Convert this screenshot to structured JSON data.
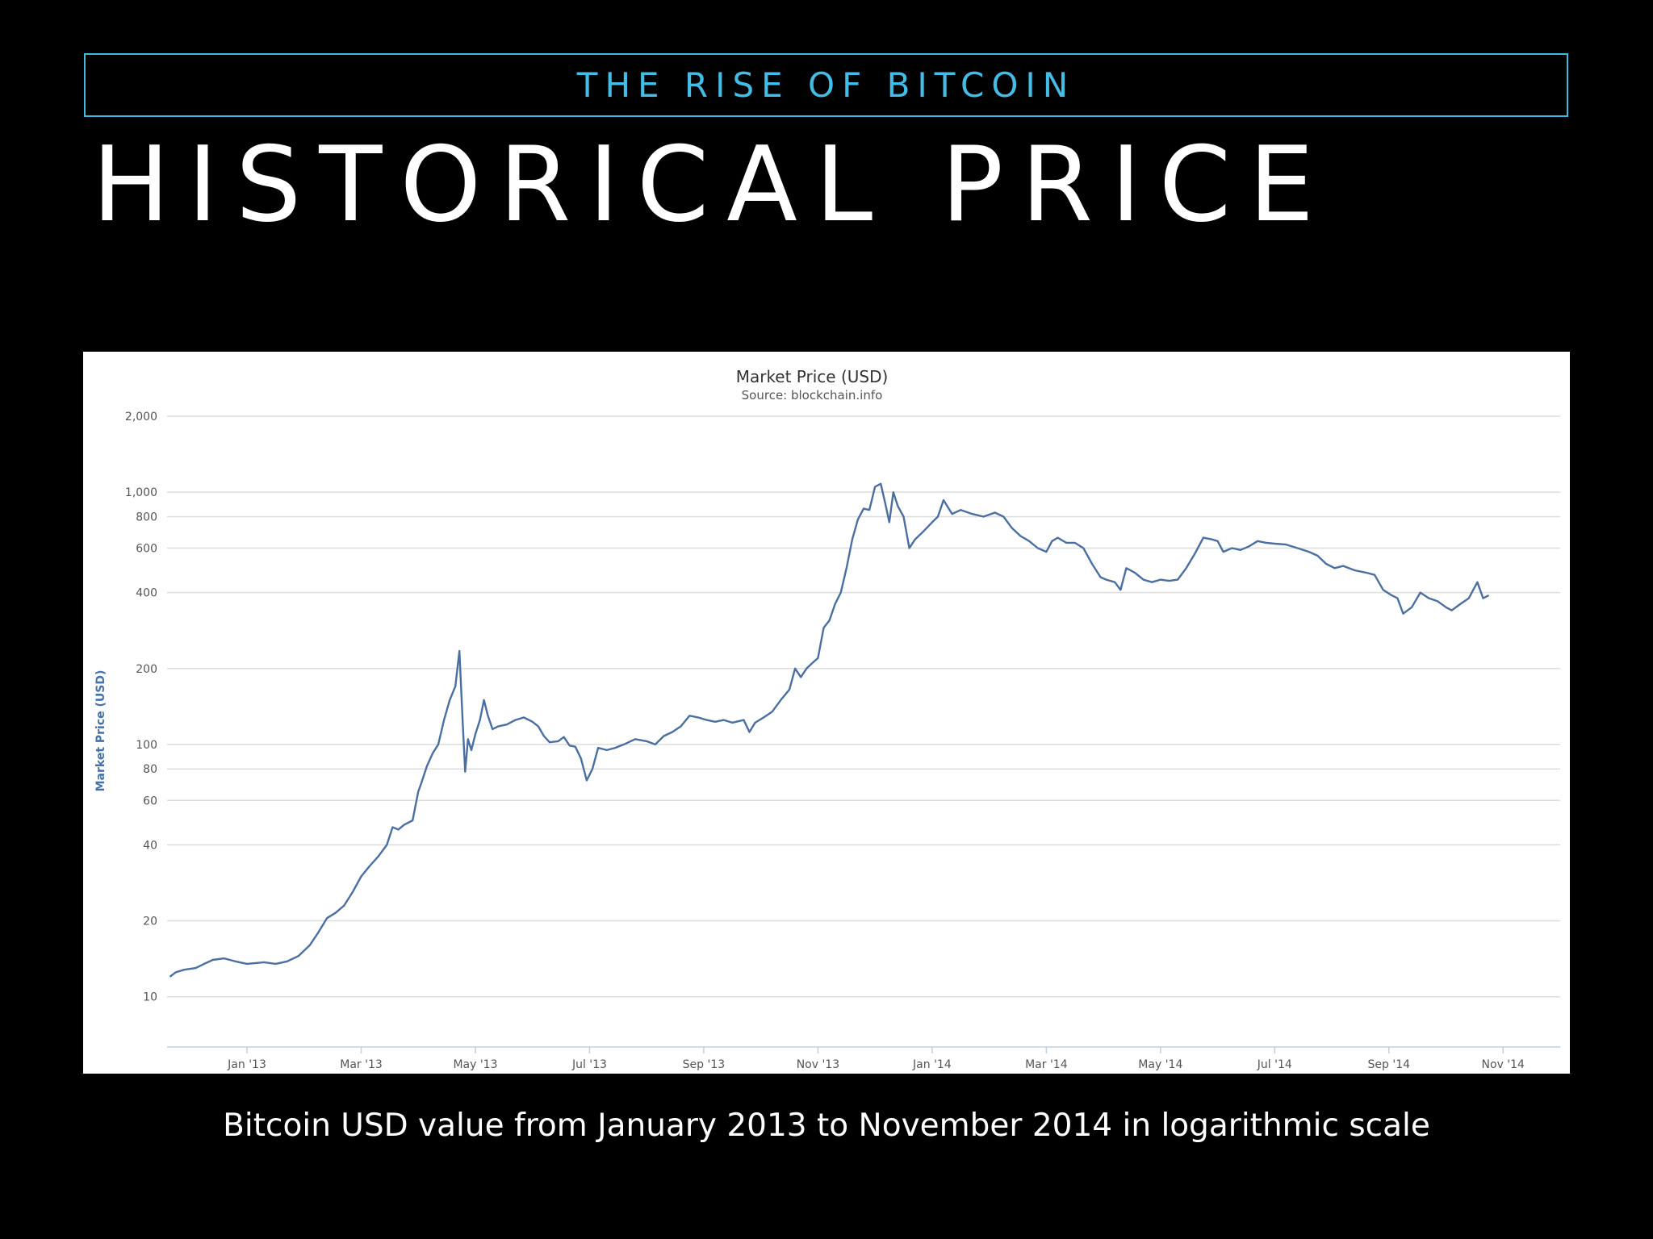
{
  "slide": {
    "kicker": "THE RISE OF BITCOIN",
    "title": "HISTORICAL PRICE",
    "caption": "Bitcoin USD value from January 2013 to November 2014 in logarithmic scale"
  },
  "colors": {
    "background": "#000000",
    "accent": "#44bde6",
    "line": "#4a6fa0",
    "grid": "#dddddd"
  },
  "chart_data": {
    "type": "line",
    "title": "Market Price (USD)",
    "subtitle": "Source: blockchain.info",
    "xlabel": "",
    "ylabel": "Market Price (USD)",
    "yscale": "log",
    "ylim": [
      8,
      2000
    ],
    "grid": true,
    "y_ticks": [
      {
        "value": 10,
        "label": "10"
      },
      {
        "value": 20,
        "label": "20"
      },
      {
        "value": 40,
        "label": "40"
      },
      {
        "value": 60,
        "label": "60"
      },
      {
        "value": 80,
        "label": "80"
      },
      {
        "value": 100,
        "label": "100"
      },
      {
        "value": 200,
        "label": "200"
      },
      {
        "value": 400,
        "label": "400"
      },
      {
        "value": 600,
        "label": "600"
      },
      {
        "value": 800,
        "label": "800"
      },
      {
        "value": 1000,
        "label": "1,000"
      },
      {
        "value": 2000,
        "label": "2,000"
      }
    ],
    "x_ticks": [
      {
        "t": 0.0,
        "label": "Jan '13"
      },
      {
        "t": 2.0,
        "label": "Mar '13"
      },
      {
        "t": 4.0,
        "label": "May '13"
      },
      {
        "t": 6.0,
        "label": "Jul '13"
      },
      {
        "t": 8.0,
        "label": "Sep '13"
      },
      {
        "t": 10.0,
        "label": "Nov '13"
      },
      {
        "t": 12.0,
        "label": "Jan '14"
      },
      {
        "t": 14.0,
        "label": "Mar '14"
      },
      {
        "t": 16.0,
        "label": "May '14"
      },
      {
        "t": 18.0,
        "label": "Jul '14"
      },
      {
        "t": 20.0,
        "label": "Sep '14"
      },
      {
        "t": 22.0,
        "label": "Nov '14"
      }
    ],
    "xlim": [
      -1.4,
      23.0
    ],
    "series": [
      {
        "name": "Market Price (USD)",
        "points": [
          [
            -1.35,
            12
          ],
          [
            -1.25,
            12.5
          ],
          [
            -1.1,
            12.8
          ],
          [
            -0.9,
            13
          ],
          [
            -0.75,
            13.5
          ],
          [
            -0.6,
            14
          ],
          [
            -0.4,
            14.2
          ],
          [
            -0.2,
            13.8
          ],
          [
            0.0,
            13.5
          ],
          [
            0.3,
            13.7
          ],
          [
            0.5,
            13.5
          ],
          [
            0.7,
            13.8
          ],
          [
            0.9,
            14.5
          ],
          [
            1.1,
            16
          ],
          [
            1.25,
            18
          ],
          [
            1.4,
            20.5
          ],
          [
            1.55,
            21.5
          ],
          [
            1.7,
            23
          ],
          [
            1.85,
            26
          ],
          [
            2.0,
            30
          ],
          [
            2.15,
            33
          ],
          [
            2.3,
            36
          ],
          [
            2.45,
            40
          ],
          [
            2.55,
            47
          ],
          [
            2.65,
            46
          ],
          [
            2.75,
            48
          ],
          [
            2.9,
            50
          ],
          [
            3.0,
            65
          ],
          [
            3.05,
            70
          ],
          [
            3.15,
            82
          ],
          [
            3.25,
            92
          ],
          [
            3.35,
            100
          ],
          [
            3.45,
            125
          ],
          [
            3.55,
            150
          ],
          [
            3.65,
            170
          ],
          [
            3.72,
            235
          ],
          [
            3.78,
            120
          ],
          [
            3.82,
            78
          ],
          [
            3.87,
            105
          ],
          [
            3.93,
            95
          ],
          [
            4.0,
            110
          ],
          [
            4.08,
            125
          ],
          [
            4.15,
            150
          ],
          [
            4.22,
            130
          ],
          [
            4.3,
            115
          ],
          [
            4.4,
            118
          ],
          [
            4.55,
            120
          ],
          [
            4.7,
            125
          ],
          [
            4.85,
            128
          ],
          [
            5.0,
            123
          ],
          [
            5.1,
            118
          ],
          [
            5.2,
            108
          ],
          [
            5.3,
            102
          ],
          [
            5.45,
            103
          ],
          [
            5.55,
            107
          ],
          [
            5.65,
            99
          ],
          [
            5.75,
            98
          ],
          [
            5.85,
            88
          ],
          [
            5.95,
            72
          ],
          [
            6.05,
            80
          ],
          [
            6.15,
            97
          ],
          [
            6.3,
            95
          ],
          [
            6.45,
            97
          ],
          [
            6.6,
            100
          ],
          [
            6.8,
            105
          ],
          [
            7.0,
            103
          ],
          [
            7.15,
            100
          ],
          [
            7.3,
            108
          ],
          [
            7.45,
            112
          ],
          [
            7.6,
            118
          ],
          [
            7.75,
            130
          ],
          [
            7.9,
            128
          ],
          [
            8.05,
            125
          ],
          [
            8.2,
            123
          ],
          [
            8.35,
            125
          ],
          [
            8.5,
            122
          ],
          [
            8.7,
            125
          ],
          [
            8.8,
            112
          ],
          [
            8.9,
            122
          ],
          [
            9.05,
            128
          ],
          [
            9.2,
            135
          ],
          [
            9.35,
            150
          ],
          [
            9.5,
            165
          ],
          [
            9.6,
            200
          ],
          [
            9.7,
            185
          ],
          [
            9.8,
            200
          ],
          [
            9.9,
            210
          ],
          [
            10.0,
            220
          ],
          [
            10.1,
            290
          ],
          [
            10.2,
            310
          ],
          [
            10.3,
            360
          ],
          [
            10.4,
            400
          ],
          [
            10.5,
            500
          ],
          [
            10.6,
            650
          ],
          [
            10.7,
            780
          ],
          [
            10.8,
            860
          ],
          [
            10.9,
            850
          ],
          [
            11.0,
            1050
          ],
          [
            11.1,
            1080
          ],
          [
            11.18,
            900
          ],
          [
            11.25,
            760
          ],
          [
            11.32,
            1000
          ],
          [
            11.4,
            880
          ],
          [
            11.5,
            800
          ],
          [
            11.6,
            600
          ],
          [
            11.7,
            650
          ],
          [
            11.85,
            700
          ],
          [
            12.0,
            760
          ],
          [
            12.1,
            800
          ],
          [
            12.2,
            930
          ],
          [
            12.35,
            820
          ],
          [
            12.5,
            850
          ],
          [
            12.7,
            820
          ],
          [
            12.9,
            800
          ],
          [
            13.1,
            830
          ],
          [
            13.25,
            800
          ],
          [
            13.4,
            720
          ],
          [
            13.55,
            670
          ],
          [
            13.7,
            640
          ],
          [
            13.85,
            600
          ],
          [
            14.0,
            580
          ],
          [
            14.1,
            640
          ],
          [
            14.2,
            660
          ],
          [
            14.35,
            630
          ],
          [
            14.5,
            630
          ],
          [
            14.65,
            600
          ],
          [
            14.8,
            520
          ],
          [
            14.95,
            460
          ],
          [
            15.05,
            450
          ],
          [
            15.2,
            440
          ],
          [
            15.3,
            410
          ],
          [
            15.4,
            500
          ],
          [
            15.55,
            480
          ],
          [
            15.7,
            450
          ],
          [
            15.85,
            440
          ],
          [
            16.0,
            450
          ],
          [
            16.15,
            445
          ],
          [
            16.3,
            450
          ],
          [
            16.45,
            500
          ],
          [
            16.6,
            570
          ],
          [
            16.75,
            660
          ],
          [
            16.9,
            650
          ],
          [
            17.0,
            640
          ],
          [
            17.1,
            580
          ],
          [
            17.25,
            600
          ],
          [
            17.4,
            590
          ],
          [
            17.55,
            610
          ],
          [
            17.7,
            640
          ],
          [
            17.85,
            630
          ],
          [
            18.0,
            625
          ],
          [
            18.2,
            620
          ],
          [
            18.4,
            600
          ],
          [
            18.6,
            580
          ],
          [
            18.75,
            560
          ],
          [
            18.9,
            520
          ],
          [
            19.05,
            500
          ],
          [
            19.2,
            510
          ],
          [
            19.4,
            490
          ],
          [
            19.6,
            480
          ],
          [
            19.75,
            470
          ],
          [
            19.9,
            410
          ],
          [
            20.05,
            390
          ],
          [
            20.15,
            380
          ],
          [
            20.25,
            330
          ],
          [
            20.4,
            350
          ],
          [
            20.55,
            400
          ],
          [
            20.7,
            380
          ],
          [
            20.85,
            370
          ],
          [
            21.0,
            350
          ],
          [
            21.1,
            340
          ],
          [
            21.25,
            360
          ],
          [
            21.4,
            380
          ],
          [
            21.55,
            440
          ],
          [
            21.65,
            380
          ],
          [
            21.75,
            390
          ]
        ]
      }
    ]
  }
}
